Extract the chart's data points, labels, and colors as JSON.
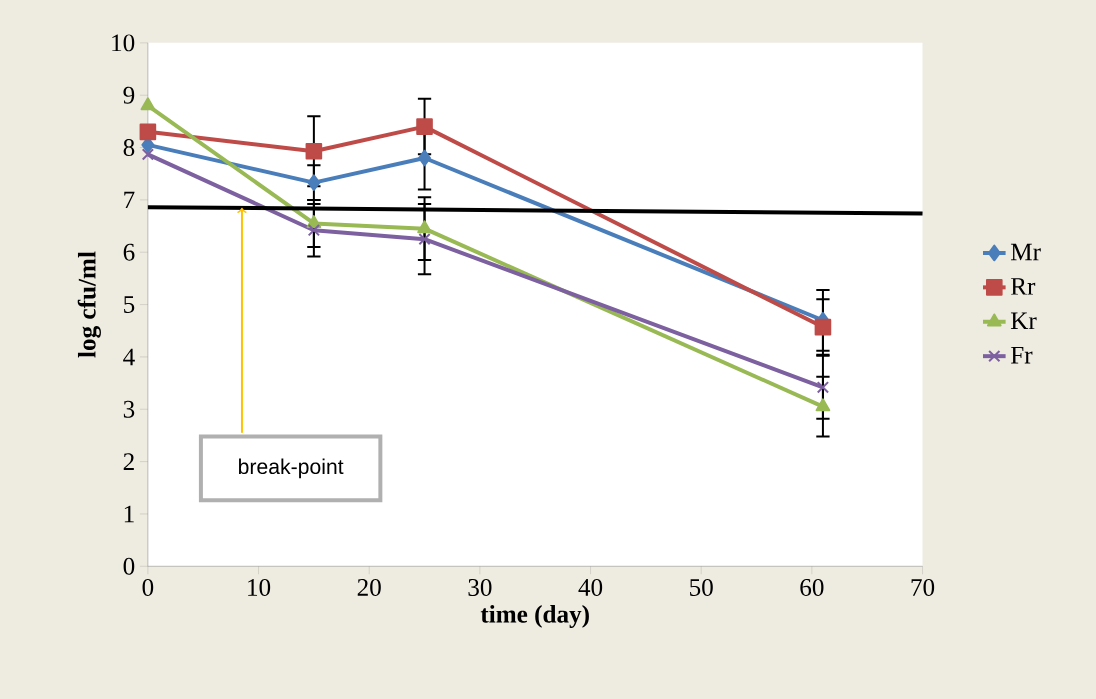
{
  "chart_data": {
    "type": "line",
    "xlabel": "time (day)",
    "ylabel": "log cfu/ml",
    "x": [
      0,
      15,
      25,
      61
    ],
    "xlim": [
      0,
      70
    ],
    "xticks": [
      0,
      10,
      20,
      30,
      40,
      50,
      60,
      70
    ],
    "ylim": [
      0,
      10
    ],
    "yticks": [
      0,
      1,
      2,
      3,
      4,
      5,
      6,
      7,
      8,
      9,
      10
    ],
    "legend": "right",
    "line_style": "solid",
    "series": [
      {
        "name": "Mr",
        "color": "#4a7ebb",
        "marker": "diamond",
        "values": [
          8.05,
          7.33,
          7.8,
          4.7
        ],
        "errors": [
          null,
          0.33,
          0.6,
          0.58
        ]
      },
      {
        "name": "Rr",
        "color": "#be4b48",
        "marker": "square",
        "values": [
          8.3,
          7.93,
          8.4,
          4.57
        ],
        "errors": [
          null,
          0.67,
          0.53,
          0.53
        ]
      },
      {
        "name": "Kr",
        "color": "#98b954",
        "marker": "triangle",
        "values": [
          8.8,
          6.55,
          6.45,
          3.05
        ],
        "errors": [
          null,
          0.45,
          0.6,
          0.57
        ]
      },
      {
        "name": "Fr",
        "color": "#7d60a0",
        "marker": "cross",
        "values": [
          7.87,
          6.42,
          6.25,
          3.42
        ],
        "errors": [
          null,
          0.5,
          0.67,
          0.6
        ]
      },
      {
        "type": "line",
        "x": [
          0,
          70
        ],
        "values": [
          6.86,
          6.74
        ],
        "color": "#000000",
        "marker": "none"
      }
    ],
    "annotations": [
      {
        "text": "break-point",
        "x": 8.5,
        "y": 6.85
      }
    ]
  }
}
